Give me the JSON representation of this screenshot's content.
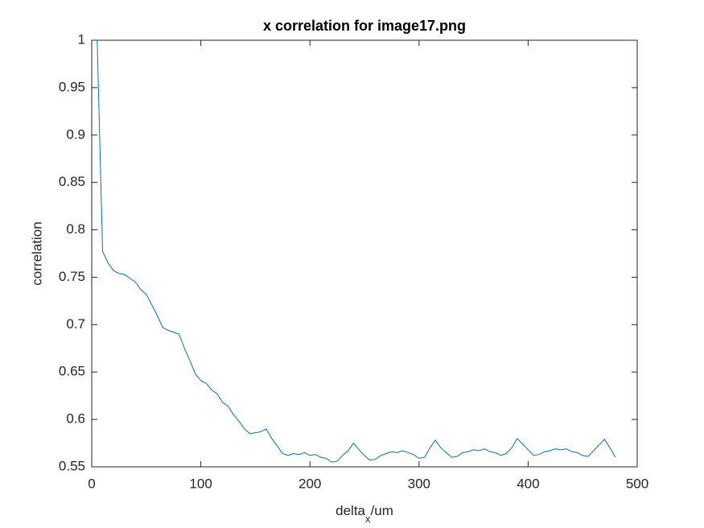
{
  "chart_data": {
    "type": "line",
    "title": "x correlation for image17.png",
    "xlabel": [
      "delta",
      "x",
      "/um"
    ],
    "ylabel": "correlation",
    "x": [
      5,
      10,
      15,
      20,
      25,
      30,
      35,
      40,
      45,
      50,
      55,
      60,
      65,
      70,
      75,
      80,
      85,
      90,
      95,
      100,
      105,
      110,
      115,
      120,
      125,
      130,
      135,
      140,
      145,
      150,
      155,
      160,
      165,
      170,
      175,
      180,
      185,
      190,
      195,
      200,
      205,
      210,
      215,
      220,
      225,
      230,
      235,
      240,
      245,
      250,
      255,
      260,
      265,
      270,
      275,
      280,
      285,
      290,
      295,
      300,
      305,
      310,
      315,
      320,
      325,
      330,
      335,
      340,
      345,
      350,
      355,
      360,
      365,
      370,
      375,
      380,
      385,
      390,
      395,
      400,
      405,
      410,
      415,
      420,
      425,
      430,
      435,
      440,
      445,
      450,
      455,
      460,
      465,
      470,
      475,
      480
    ],
    "series": [
      {
        "color": "#0072bd",
        "values": [
          1.0,
          0.777,
          0.765,
          0.757,
          0.754,
          0.753,
          0.749,
          0.745,
          0.737,
          0.732,
          0.721,
          0.71,
          0.697,
          0.694,
          0.692,
          0.69,
          0.675,
          0.662,
          0.648,
          0.641,
          0.638,
          0.631,
          0.627,
          0.618,
          0.614,
          0.605,
          0.598,
          0.59,
          0.585,
          0.586,
          0.587,
          0.59,
          0.58,
          0.572,
          0.564,
          0.562,
          0.564,
          0.563,
          0.565,
          0.562,
          0.563,
          0.56,
          0.559,
          0.555,
          0.556,
          0.562,
          0.567,
          0.575,
          0.568,
          0.562,
          0.557,
          0.558,
          0.562,
          0.564,
          0.566,
          0.565,
          0.567,
          0.565,
          0.563,
          0.559,
          0.56,
          0.57,
          0.578,
          0.57,
          0.565,
          0.56,
          0.561,
          0.565,
          0.566,
          0.568,
          0.567,
          0.569,
          0.566,
          0.565,
          0.562,
          0.564,
          0.57,
          0.58,
          0.574,
          0.568,
          0.562,
          0.563,
          0.566,
          0.567,
          0.569,
          0.568,
          0.569,
          0.566,
          0.565,
          0.562,
          0.561,
          0.567,
          0.573,
          0.579,
          0.57,
          0.56
        ]
      }
    ],
    "xlim": [
      0,
      500
    ],
    "xticks": [
      0,
      100,
      200,
      300,
      400,
      500
    ],
    "ylim": [
      0.55,
      1
    ],
    "yticks": [
      0.55,
      0.6,
      0.65,
      0.7,
      0.75,
      0.8,
      0.85,
      0.9,
      0.95,
      1
    ]
  }
}
